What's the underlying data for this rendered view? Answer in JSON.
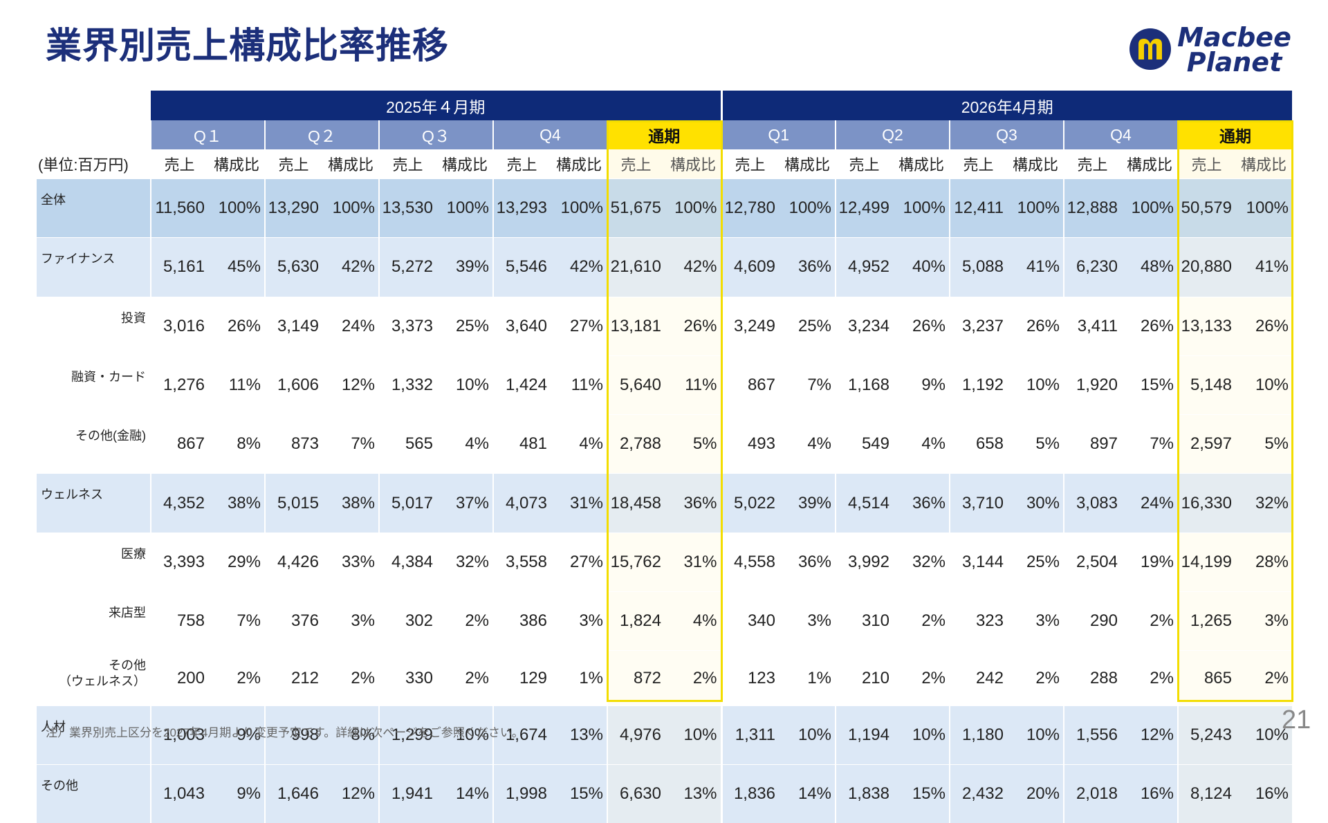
{
  "title": "業界別売上構成比率推移",
  "logo": {
    "line1": "Macbee",
    "line2": "Planet",
    "colors": {
      "blue": "#1c2f7a",
      "yellow": "#f5cf00"
    }
  },
  "table": {
    "unit_label": "(単位:百万円)",
    "years": [
      "2025年４月期",
      "2026年4月期"
    ],
    "periods": [
      [
        "Q１",
        "Q２",
        "Q３",
        "Q4",
        "通期"
      ],
      [
        "Q1",
        "Q2",
        "Q3",
        "Q4",
        "通期"
      ]
    ],
    "sales_label": "売上",
    "ratio_label": "構成比",
    "rows": [
      {
        "label": "全体",
        "kind": "total",
        "values": [
          "11,560",
          "100%",
          "13,290",
          "100%",
          "13,530",
          "100%",
          "13,293",
          "100%",
          "51,675",
          "100%",
          "12,780",
          "100%",
          "12,499",
          "100%",
          "12,411",
          "100%",
          "12,888",
          "100%",
          "50,579",
          "100%"
        ]
      },
      {
        "label": "ファイナンス",
        "kind": "segment",
        "values": [
          "5,161",
          "45%",
          "5,630",
          "42%",
          "5,272",
          "39%",
          "5,546",
          "42%",
          "21,610",
          "42%",
          "4,609",
          "36%",
          "4,952",
          "40%",
          "5,088",
          "41%",
          "6,230",
          "48%",
          "20,880",
          "41%"
        ]
      },
      {
        "label": "投資",
        "kind": "sub",
        "values": [
          "3,016",
          "26%",
          "3,149",
          "24%",
          "3,373",
          "25%",
          "3,640",
          "27%",
          "13,181",
          "26%",
          "3,249",
          "25%",
          "3,234",
          "26%",
          "3,237",
          "26%",
          "3,411",
          "26%",
          "13,133",
          "26%"
        ]
      },
      {
        "label": "融資・カード",
        "kind": "sub",
        "values": [
          "1,276",
          "11%",
          "1,606",
          "12%",
          "1,332",
          "10%",
          "1,424",
          "11%",
          "5,640",
          "11%",
          "867",
          "7%",
          "1,168",
          "9%",
          "1,192",
          "10%",
          "1,920",
          "15%",
          "5,148",
          "10%"
        ]
      },
      {
        "label": "その他(金融)",
        "kind": "sub",
        "values": [
          "867",
          "8%",
          "873",
          "7%",
          "565",
          "4%",
          "481",
          "4%",
          "2,788",
          "5%",
          "493",
          "4%",
          "549",
          "4%",
          "658",
          "5%",
          "897",
          "7%",
          "2,597",
          "5%"
        ]
      },
      {
        "label": "ウェルネス",
        "kind": "segment",
        "values": [
          "4,352",
          "38%",
          "5,015",
          "38%",
          "5,017",
          "37%",
          "4,073",
          "31%",
          "18,458",
          "36%",
          "5,022",
          "39%",
          "4,514",
          "36%",
          "3,710",
          "30%",
          "3,083",
          "24%",
          "16,330",
          "32%"
        ]
      },
      {
        "label": "医療",
        "kind": "sub",
        "values": [
          "3,393",
          "29%",
          "4,426",
          "33%",
          "4,384",
          "32%",
          "3,558",
          "27%",
          "15,762",
          "31%",
          "4,558",
          "36%",
          "3,992",
          "32%",
          "3,144",
          "25%",
          "2,504",
          "19%",
          "14,199",
          "28%"
        ]
      },
      {
        "label": "来店型",
        "kind": "sub",
        "values": [
          "758",
          "7%",
          "376",
          "3%",
          "302",
          "2%",
          "386",
          "3%",
          "1,824",
          "4%",
          "340",
          "3%",
          "310",
          "2%",
          "323",
          "3%",
          "290",
          "2%",
          "1,265",
          "3%"
        ]
      },
      {
        "label": "その他",
        "label2": "（ウェルネス）",
        "kind": "sub",
        "values": [
          "200",
          "2%",
          "212",
          "2%",
          "330",
          "2%",
          "129",
          "1%",
          "872",
          "2%",
          "123",
          "1%",
          "210",
          "2%",
          "242",
          "2%",
          "288",
          "2%",
          "865",
          "2%"
        ]
      },
      {
        "label": "人材",
        "kind": "segment",
        "values": [
          "1,003",
          "9%",
          "998",
          "8%",
          "1,299",
          "10%",
          "1,674",
          "13%",
          "4,976",
          "10%",
          "1,311",
          "10%",
          "1,194",
          "10%",
          "1,180",
          "10%",
          "1,556",
          "12%",
          "5,243",
          "10%"
        ]
      },
      {
        "label": "その他",
        "kind": "segment",
        "values": [
          "1,043",
          "9%",
          "1,646",
          "12%",
          "1,941",
          "14%",
          "1,998",
          "15%",
          "6,630",
          "13%",
          "1,836",
          "14%",
          "1,838",
          "15%",
          "2,432",
          "20%",
          "2,018",
          "16%",
          "8,124",
          "16%"
        ]
      }
    ]
  },
  "footnote": "注）業界別売上区分を2027年4月期より変更予定です。詳細は次ページをご参照ください。",
  "page_number": "21",
  "colors": {
    "header_navy": "#0e2a78",
    "quarter_blue": "#7c93c6",
    "full_year_yellow": "#ffe100",
    "segment_row": "#dce8f6",
    "total_row": "#bdd5ec"
  }
}
